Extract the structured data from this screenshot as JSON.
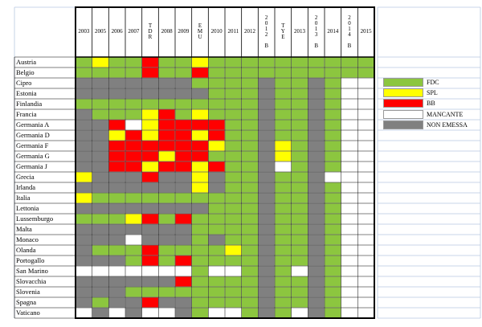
{
  "columns": [
    {
      "label": "2003",
      "vertical": false
    },
    {
      "label": "2005",
      "vertical": false
    },
    {
      "label": "2006",
      "vertical": false
    },
    {
      "label": "2007",
      "vertical": false
    },
    {
      "label": "TDR",
      "vertical": true
    },
    {
      "label": "2008",
      "vertical": false
    },
    {
      "label": "2009",
      "vertical": false
    },
    {
      "label": "EMU",
      "vertical": true
    },
    {
      "label": "2010",
      "vertical": false
    },
    {
      "label": "2011",
      "vertical": false
    },
    {
      "label": "2012",
      "vertical": false
    },
    {
      "label": "2012 B",
      "vertical": true
    },
    {
      "label": "TYE",
      "vertical": true
    },
    {
      "label": "2013",
      "vertical": false
    },
    {
      "label": "2013 B",
      "vertical": true
    },
    {
      "label": "2014",
      "vertical": false
    },
    {
      "label": "2014 B",
      "vertical": true
    },
    {
      "label": "2015",
      "vertical": false
    }
  ],
  "rows": [
    {
      "country": "Austria",
      "cells": "GYGGRGGYGGGGGGGGGG"
    },
    {
      "country": "Belgio",
      "cells": "GGGGRGGRGGGGGGGGGG"
    },
    {
      "country": "Cipro",
      "cells": "NNNNNNNGGGGNGGNGWW"
    },
    {
      "country": "Estonia",
      "cells": "NNNNNNNNGGGNGGNGWW"
    },
    {
      "country": "Finlandia",
      "cells": "GGGGGGGGGGGNGGNGWW"
    },
    {
      "country": "Francia",
      "cells": "NGGGYRGYGGGNGGNGWW"
    },
    {
      "country": "Germania A",
      "cells": "NNRWYRRRRGGNGGNGWW"
    },
    {
      "country": "Germania D",
      "cells": "NNYRYRRYRGGNGGNGWW"
    },
    {
      "country": "Germania F",
      "cells": "NNRRRRRRYGGNYGNGWW"
    },
    {
      "country": "Germania G",
      "cells": "NNRRRYRRGGGNYGNGWW"
    },
    {
      "country": "Germania J",
      "cells": "NNRRYRRYRGGNWGNGWW"
    },
    {
      "country": "Grecia",
      "cells": "YNNNRNNYNGGNGGNWWW"
    },
    {
      "country": "Irlanda",
      "cells": "NNNNNNNYNGGNGGNGWW"
    },
    {
      "country": "Italia",
      "cells": "YGGGGGGGGGGNGGNGWW"
    },
    {
      "country": "Lettonia",
      "cells": "NNNNNNNNGGGNGGNGWW"
    },
    {
      "country": "Lussemburgo",
      "cells": "GGGYRGRGGGGNGGNGWW"
    },
    {
      "country": "Malta",
      "cells": "NNNNNNNGGGGNGGNGWW"
    },
    {
      "country": "Monaco",
      "cells": "NNNWNNNGNGGNGGNGWW"
    },
    {
      "country": "Olanda",
      "cells": "NGGGRGGGGYGNGGNGWW"
    },
    {
      "country": "Portogallo",
      "cells": "NNNGRGRGGGGNGGNGWW"
    },
    {
      "country": "San Marino",
      "cells": "WWWWWWWGWWGNGWNGWW"
    },
    {
      "country": "Slovacchia",
      "cells": "NNNNNNRGGGGNGGNGWW"
    },
    {
      "country": "Slovenia",
      "cells": "NNNGGGGGGGGNGGNGWW"
    },
    {
      "country": "Spagna",
      "cells": "NGNNRNNGGGGNGGNGWW"
    },
    {
      "country": "Vaticano",
      "cells": "WNWNWWNGWWGNGWNGWW"
    }
  ],
  "legend": [
    {
      "code": "G",
      "label": "FDC",
      "color": "#8cc63f"
    },
    {
      "code": "Y",
      "label": "SPL",
      "color": "#ffff00"
    },
    {
      "code": "R",
      "label": "BB",
      "color": "#ff0000"
    },
    {
      "code": "W",
      "label": "MANCANTE",
      "color": "#ffffff"
    },
    {
      "code": "N",
      "label": "NON EMESSA",
      "color": "#808080"
    }
  ]
}
